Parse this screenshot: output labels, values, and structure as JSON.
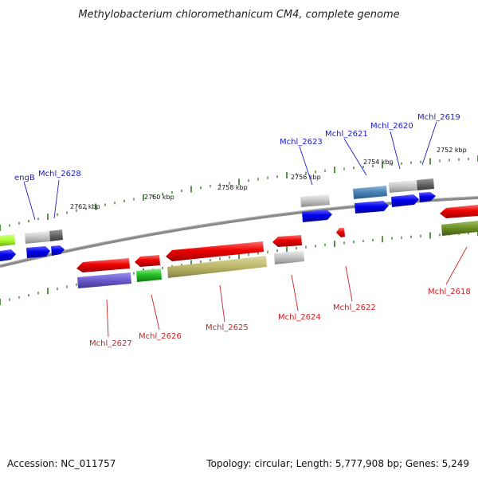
{
  "title": "Methylobacterium chloromethanicum CM4, complete genome",
  "footer": {
    "accession": "Accession: NC_011757",
    "summary": "Topology: circular; Length: 5,777,908 bp; Genes: 5,249"
  },
  "colors": {
    "backbone": "#8a8a8a",
    "tick": "#2a7a1a",
    "label_top": "#1a1acc",
    "label_bottom": "#cc2222"
  },
  "ticks": [
    "2762 kbp",
    "2760 kbp",
    "2758 kbp",
    "2756 kbp",
    "2754 kbp",
    "2752 kbp"
  ],
  "labels_top": [
    "engB",
    "Mchl_2628",
    "Mchl_2623",
    "Mchl_2621",
    "Mchl_2620",
    "Mchl_2619"
  ],
  "labels_bottom": [
    "Mchl_2627",
    "Mchl_2626",
    "Mchl_2625",
    "Mchl_2624",
    "Mchl_2622",
    "Mchl_2618"
  ]
}
